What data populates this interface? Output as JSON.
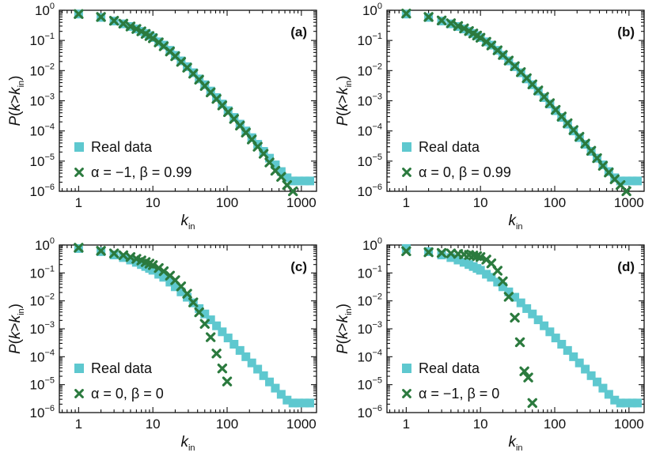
{
  "figure": {
    "colors": {
      "real_data": "#5ec8cf",
      "model": "#2b7a3e",
      "axis": "#111111"
    }
  },
  "chart_data": [
    {
      "type": "scatter",
      "panel": "(a)",
      "xlabel": "k_in",
      "ylabel": "P(k>k_in)",
      "xscale": "log",
      "yscale": "log",
      "xlim": [
        0.55,
        1600
      ],
      "ylim": [
        1e-06,
        1
      ],
      "xticks": [
        1,
        10,
        100,
        1000
      ],
      "xticklabels": [
        "1",
        "10",
        "100",
        "1000"
      ],
      "yticks": [
        1,
        0.1,
        0.01,
        0.001,
        0.0001,
        1e-05,
        1e-06
      ],
      "yticklabels": [
        {
          "base": "10",
          "exp": "0"
        },
        {
          "base": "10",
          "exp": "−1"
        },
        {
          "base": "10",
          "exp": "−2"
        },
        {
          "base": "10",
          "exp": "−3"
        },
        {
          "base": "10",
          "exp": "−4"
        },
        {
          "base": "10",
          "exp": "−5"
        },
        {
          "base": "10",
          "exp": "−6"
        }
      ],
      "legend": {
        "placement": "lower-left",
        "entries": [
          "Real data",
          "α = −1, β = 0.99"
        ]
      },
      "series": [
        {
          "name": "Real data",
          "marker": "square",
          "x": [
            1,
            2,
            3,
            4,
            5,
            6,
            7,
            8,
            9,
            10,
            12,
            14,
            17,
            20,
            24,
            29,
            35,
            42,
            50,
            60,
            72,
            86,
            103,
            124,
            149,
            179,
            215,
            258,
            310,
            372,
            446,
            535,
            642,
            770,
            924,
            1108,
            1300
          ],
          "y": [
            0.75,
            0.58,
            0.44,
            0.355,
            0.29,
            0.24,
            0.2,
            0.17,
            0.145,
            0.125,
            0.09,
            0.07,
            0.047,
            0.032,
            0.021,
            0.0135,
            0.0085,
            0.0053,
            0.0034,
            0.0021,
            0.00128,
            0.00078,
            0.00047,
            0.00028,
            0.000168,
            0.0001,
            6e-05,
            3.6e-05,
            2.1e-05,
            1.25e-05,
            7.5e-06,
            4.5e-06,
            2.8e-06,
            2.2e-06,
            2.2e-06,
            2.2e-06,
            2.2e-06
          ]
        },
        {
          "name": "α = −1, β = 0.99",
          "marker": "x",
          "x": [
            1,
            2,
            3,
            4,
            5,
            6,
            7,
            8,
            9,
            10,
            12,
            14,
            17,
            20,
            24,
            29,
            35,
            42,
            50,
            60,
            72,
            86,
            103,
            124,
            149,
            179,
            215,
            258,
            310,
            372,
            446,
            535,
            642,
            770
          ],
          "y": [
            0.75,
            0.6,
            0.45,
            0.36,
            0.29,
            0.24,
            0.2,
            0.165,
            0.14,
            0.118,
            0.086,
            0.064,
            0.043,
            0.03,
            0.0195,
            0.0125,
            0.0079,
            0.005,
            0.0031,
            0.0019,
            0.00115,
            0.0007,
            0.00042,
            0.00025,
            0.00015,
            8.8e-05,
            5.2e-05,
            3e-05,
            1.75e-05,
            9e-06,
            4.8e-06,
            3e-06,
            1.6e-06,
            1e-06
          ]
        }
      ]
    },
    {
      "type": "scatter",
      "panel": "(b)",
      "xlabel": "k_in",
      "ylabel": "P(k>k_in)",
      "xscale": "log",
      "yscale": "log",
      "xlim": [
        0.55,
        1600
      ],
      "ylim": [
        1e-06,
        1
      ],
      "xticks": [
        1,
        10,
        100,
        1000
      ],
      "xticklabels": [
        "1",
        "10",
        "100",
        "1000"
      ],
      "yticks": [
        1,
        0.1,
        0.01,
        0.001,
        0.0001,
        1e-05,
        1e-06
      ],
      "yticklabels": [
        {
          "base": "10",
          "exp": "0"
        },
        {
          "base": "10",
          "exp": "−1"
        },
        {
          "base": "10",
          "exp": "−2"
        },
        {
          "base": "10",
          "exp": "−3"
        },
        {
          "base": "10",
          "exp": "−4"
        },
        {
          "base": "10",
          "exp": "−5"
        },
        {
          "base": "10",
          "exp": "−6"
        }
      ],
      "legend": {
        "placement": "lower-left",
        "entries": [
          "Real data",
          "α = 0, β = 0.99"
        ]
      },
      "series": [
        {
          "name": "Real data",
          "marker": "square",
          "x": [
            1,
            2,
            3,
            4,
            5,
            6,
            7,
            8,
            9,
            10,
            12,
            14,
            17,
            20,
            24,
            29,
            35,
            42,
            50,
            60,
            72,
            86,
            103,
            124,
            149,
            179,
            215,
            258,
            310,
            372,
            446,
            535,
            642,
            770,
            924,
            1108,
            1300
          ],
          "y": [
            0.75,
            0.58,
            0.44,
            0.355,
            0.29,
            0.24,
            0.2,
            0.17,
            0.145,
            0.125,
            0.09,
            0.07,
            0.047,
            0.032,
            0.021,
            0.0135,
            0.0085,
            0.0053,
            0.0034,
            0.0021,
            0.00128,
            0.00078,
            0.00047,
            0.00028,
            0.000168,
            0.0001,
            6e-05,
            3.6e-05,
            2.1e-05,
            1.25e-05,
            7.5e-06,
            4.5e-06,
            2.8e-06,
            2.2e-06,
            2.2e-06,
            2.2e-06,
            2.2e-06
          ]
        },
        {
          "name": "α = 0, β = 0.99",
          "marker": "x",
          "x": [
            1,
            2,
            3,
            4,
            5,
            6,
            7,
            8,
            9,
            10,
            12,
            14,
            17,
            20,
            24,
            29,
            35,
            42,
            50,
            60,
            72,
            86,
            103,
            124,
            149,
            179,
            215,
            258,
            310,
            372,
            446,
            535,
            642,
            770,
            924
          ],
          "y": [
            0.78,
            0.6,
            0.46,
            0.37,
            0.3,
            0.25,
            0.205,
            0.17,
            0.145,
            0.123,
            0.09,
            0.068,
            0.047,
            0.033,
            0.0215,
            0.014,
            0.0089,
            0.0056,
            0.0035,
            0.0022,
            0.00135,
            0.00083,
            0.0005,
            0.0003,
            0.00018,
            0.000107,
            6.4e-05,
            3.8e-05,
            2.2e-05,
            1.25e-05,
            7e-06,
            4.2e-06,
            2.5e-06,
            1.6e-06,
            1e-06
          ]
        }
      ]
    },
    {
      "type": "scatter",
      "panel": "(c)",
      "xlabel": "k_in",
      "ylabel": "P(k>k_in)",
      "xscale": "log",
      "yscale": "log",
      "xlim": [
        0.55,
        1600
      ],
      "ylim": [
        1e-06,
        1
      ],
      "xticks": [
        1,
        10,
        100,
        1000
      ],
      "xticklabels": [
        "1",
        "10",
        "100",
        "1000"
      ],
      "yticks": [
        1,
        0.1,
        0.01,
        0.001,
        0.0001,
        1e-05,
        1e-06
      ],
      "yticklabels": [
        {
          "base": "10",
          "exp": "0"
        },
        {
          "base": "10",
          "exp": "−1"
        },
        {
          "base": "10",
          "exp": "−2"
        },
        {
          "base": "10",
          "exp": "−3"
        },
        {
          "base": "10",
          "exp": "−4"
        },
        {
          "base": "10",
          "exp": "−5"
        },
        {
          "base": "10",
          "exp": "−6"
        }
      ],
      "legend": {
        "placement": "lower-left",
        "entries": [
          "Real data",
          "α = 0, β = 0"
        ]
      },
      "series": [
        {
          "name": "Real data",
          "marker": "square",
          "x": [
            1,
            2,
            3,
            4,
            5,
            6,
            7,
            8,
            9,
            10,
            12,
            14,
            17,
            20,
            24,
            29,
            35,
            42,
            50,
            60,
            72,
            86,
            103,
            124,
            149,
            179,
            215,
            258,
            310,
            372,
            446,
            535,
            642,
            770,
            924,
            1108,
            1300
          ],
          "y": [
            0.75,
            0.58,
            0.44,
            0.355,
            0.29,
            0.24,
            0.2,
            0.17,
            0.145,
            0.125,
            0.09,
            0.07,
            0.047,
            0.032,
            0.021,
            0.0135,
            0.0085,
            0.0053,
            0.0034,
            0.0021,
            0.00128,
            0.00078,
            0.00047,
            0.00028,
            0.000168,
            0.0001,
            6e-05,
            3.6e-05,
            2.1e-05,
            1.25e-05,
            7.5e-06,
            4.5e-06,
            2.8e-06,
            2.2e-06,
            2.2e-06,
            2.2e-06,
            2.2e-06
          ]
        },
        {
          "name": "α = 0, β = 0",
          "marker": "x",
          "x": [
            1,
            2,
            3,
            4,
            5,
            6,
            7,
            8,
            9,
            10,
            12,
            14,
            17,
            20,
            24,
            29,
            35,
            42,
            50,
            60,
            72,
            86,
            100
          ],
          "y": [
            0.8,
            0.62,
            0.5,
            0.43,
            0.37,
            0.32,
            0.28,
            0.245,
            0.215,
            0.19,
            0.15,
            0.115,
            0.08,
            0.055,
            0.033,
            0.018,
            0.0088,
            0.0039,
            0.0015,
            0.0005,
            0.00013,
            3.8e-05,
            1.3e-05
          ]
        }
      ]
    },
    {
      "type": "scatter",
      "panel": "(d)",
      "xlabel": "k_in",
      "ylabel": "P(k>k_in)",
      "xscale": "log",
      "yscale": "log",
      "xlim": [
        0.55,
        1600
      ],
      "ylim": [
        1e-06,
        1
      ],
      "xticks": [
        1,
        10,
        100,
        1000
      ],
      "xticklabels": [
        "1",
        "10",
        "100",
        "1000"
      ],
      "yticks": [
        1,
        0.1,
        0.01,
        0.001,
        0.0001,
        1e-05,
        1e-06
      ],
      "yticklabels": [
        {
          "base": "10",
          "exp": "0"
        },
        {
          "base": "10",
          "exp": "−1"
        },
        {
          "base": "10",
          "exp": "−2"
        },
        {
          "base": "10",
          "exp": "−3"
        },
        {
          "base": "10",
          "exp": "−4"
        },
        {
          "base": "10",
          "exp": "−5"
        },
        {
          "base": "10",
          "exp": "−6"
        }
      ],
      "legend": {
        "placement": "lower-left",
        "entries": [
          "Real data",
          "α = −1, β = 0"
        ]
      },
      "series": [
        {
          "name": "Real data",
          "marker": "square",
          "x": [
            1,
            2,
            3,
            4,
            5,
            6,
            7,
            8,
            9,
            10,
            12,
            14,
            17,
            20,
            24,
            29,
            35,
            42,
            50,
            60,
            72,
            86,
            103,
            124,
            149,
            179,
            215,
            258,
            310,
            372,
            446,
            535,
            642,
            770,
            924,
            1108,
            1300
          ],
          "y": [
            0.75,
            0.58,
            0.44,
            0.355,
            0.29,
            0.24,
            0.2,
            0.17,
            0.145,
            0.125,
            0.09,
            0.07,
            0.047,
            0.032,
            0.021,
            0.0135,
            0.0085,
            0.0053,
            0.0034,
            0.0021,
            0.00128,
            0.00078,
            0.00047,
            0.00028,
            0.000168,
            0.0001,
            6e-05,
            3.6e-05,
            2.1e-05,
            1.25e-05,
            7.5e-06,
            4.5e-06,
            2.8e-06,
            2.2e-06,
            2.2e-06,
            2.2e-06,
            2.2e-06
          ]
        },
        {
          "name": "α = −1, β = 0",
          "marker": "x",
          "x": [
            1,
            2,
            3,
            4,
            5,
            6,
            7,
            8,
            9,
            10,
            12,
            14,
            17,
            20,
            24,
            29,
            34,
            39,
            44,
            50
          ],
          "y": [
            0.6,
            0.55,
            0.52,
            0.5,
            0.48,
            0.46,
            0.44,
            0.42,
            0.4,
            0.37,
            0.3,
            0.22,
            0.12,
            0.05,
            0.014,
            0.0025,
            0.00033,
            3e-05,
            1.8e-05,
            2.2e-06
          ]
        }
      ]
    }
  ]
}
